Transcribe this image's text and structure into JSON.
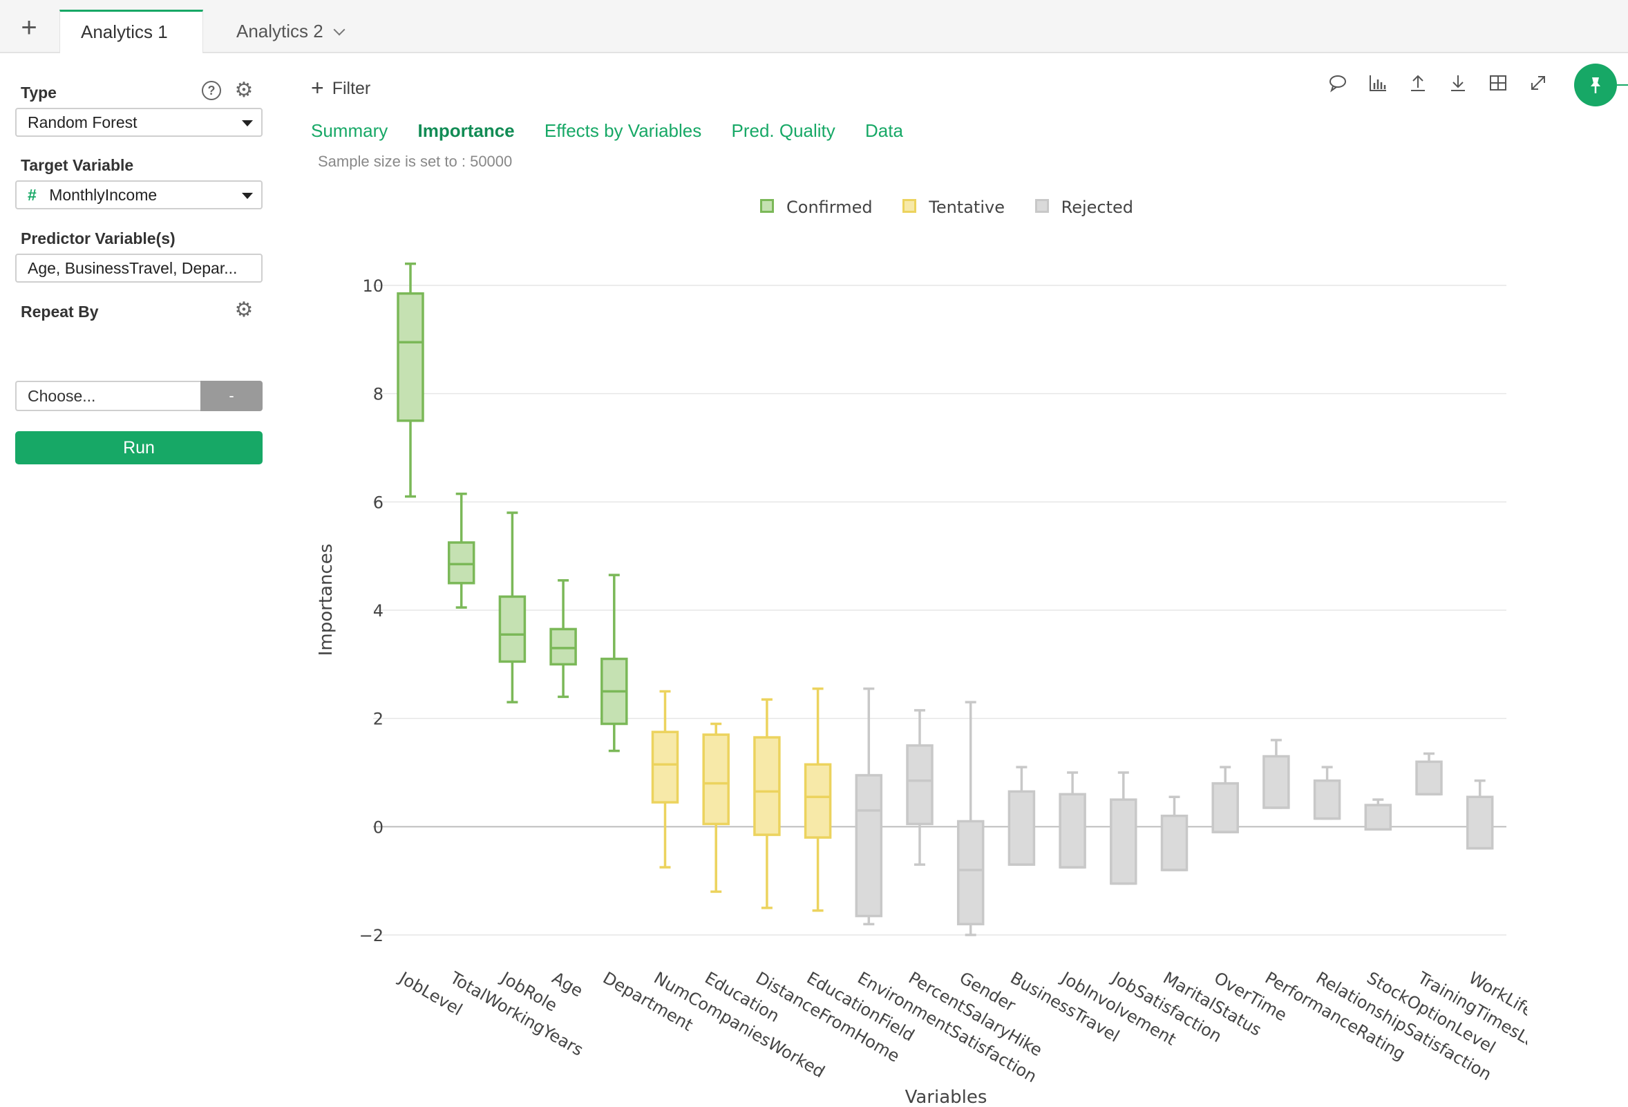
{
  "tabs": {
    "add_label": "+",
    "items": [
      {
        "label": "Analytics 1",
        "active": true
      },
      {
        "label": "Analytics 2",
        "active": false
      }
    ]
  },
  "left_panel": {
    "type_label": "Type",
    "type_value": "Random Forest",
    "target_label": "Target Variable",
    "target_icon": "#",
    "target_value": "MonthlyIncome",
    "predictor_label": "Predictor Variable(s)",
    "predictor_value": "Age, BusinessTravel, Depar...",
    "repeat_label": "Repeat By",
    "repeat_placeholder": "Choose...",
    "repeat_button": "-",
    "run_label": "Run",
    "help_glyph": "?"
  },
  "main": {
    "filter_label": "Filter",
    "subtabs": [
      "Summary",
      "Importance",
      "Effects by Variables",
      "Pred. Quality",
      "Data"
    ],
    "active_subtab": "Importance",
    "sample_text": "Sample size is set to : 50000"
  },
  "colors": {
    "accent": "#17a866",
    "confirmed_stroke": "#7bb858",
    "confirmed_fill": "#c5e1b2",
    "tentative_stroke": "#ecd35e",
    "tentative_fill": "#f7e9a8",
    "rejected_stroke": "#c8c8c8",
    "rejected_fill": "#dadada"
  },
  "chart_data": {
    "type": "box",
    "xlabel": "Variables",
    "ylabel": "Importances",
    "ylim": [
      -2.0,
      10.0
    ],
    "yticks": [
      -2,
      0,
      2,
      4,
      6,
      8,
      10
    ],
    "ytick_labels": [
      "−2",
      "0",
      "2",
      "4",
      "6",
      "8",
      "10"
    ],
    "grid": true,
    "legend": {
      "placement": "top-center",
      "entries": [
        "Confirmed",
        "Tentative",
        "Rejected"
      ]
    },
    "boxes": [
      {
        "name": "JobLevel",
        "group": "Confirmed",
        "min": 6.1,
        "q1": 7.5,
        "median": 8.95,
        "q3": 9.85,
        "max": 10.4
      },
      {
        "name": "TotalWorkingYears",
        "group": "Confirmed",
        "min": 4.05,
        "q1": 4.5,
        "median": 4.85,
        "q3": 5.25,
        "max": 6.15
      },
      {
        "name": "JobRole",
        "group": "Confirmed",
        "min": 2.3,
        "q1": 3.05,
        "median": 3.55,
        "q3": 4.25,
        "max": 5.8
      },
      {
        "name": "Age",
        "group": "Confirmed",
        "min": 2.4,
        "q1": 3.0,
        "median": 3.3,
        "q3": 3.65,
        "max": 4.55
      },
      {
        "name": "Department",
        "group": "Confirmed",
        "min": 1.4,
        "q1": 1.9,
        "median": 2.5,
        "q3": 3.1,
        "max": 4.65
      },
      {
        "name": "NumCompaniesWorked",
        "group": "Tentative",
        "min": -0.75,
        "q1": 0.45,
        "median": 1.15,
        "q3": 1.75,
        "max": 2.5
      },
      {
        "name": "Education",
        "group": "Tentative",
        "min": -1.2,
        "q1": 0.05,
        "median": 0.8,
        "q3": 1.7,
        "max": 1.9
      },
      {
        "name": "DistanceFromHome",
        "group": "Tentative",
        "min": -1.5,
        "q1": -0.15,
        "median": 0.65,
        "q3": 1.65,
        "max": 2.35
      },
      {
        "name": "EducationField",
        "group": "Tentative",
        "min": -1.55,
        "q1": -0.2,
        "median": 0.55,
        "q3": 1.15,
        "max": 2.55
      },
      {
        "name": "EnvironmentSatisfaction",
        "group": "Rejected",
        "min": -1.8,
        "q1": -1.65,
        "median": 0.3,
        "q3": 0.95,
        "max": 2.55
      },
      {
        "name": "PercentSalaryHike",
        "group": "Rejected",
        "min": -0.7,
        "q1": 0.05,
        "median": 0.85,
        "q3": 1.5,
        "max": 2.15
      },
      {
        "name": "Gender",
        "group": "Rejected",
        "min": -2.0,
        "q1": -1.8,
        "median": -0.8,
        "q3": 0.1,
        "max": 2.3
      },
      {
        "name": "BusinessTravel",
        "group": "Rejected",
        "min": -0.7,
        "q1": -0.7,
        "median": -0.7,
        "q3": 0.65,
        "max": 1.1
      },
      {
        "name": "JobInvolvement",
        "group": "Rejected",
        "min": -0.75,
        "q1": -0.75,
        "median": -0.75,
        "q3": 0.6,
        "max": 1.0
      },
      {
        "name": "JobSatisfaction",
        "group": "Rejected",
        "min": -1.05,
        "q1": -1.05,
        "median": -1.05,
        "q3": 0.5,
        "max": 1.0
      },
      {
        "name": "MaritalStatus",
        "group": "Rejected",
        "min": -0.8,
        "q1": -0.8,
        "median": -0.8,
        "q3": 0.2,
        "max": 0.55
      },
      {
        "name": "OverTime",
        "group": "Rejected",
        "min": -0.1,
        "q1": -0.1,
        "median": -0.1,
        "q3": 0.8,
        "max": 1.1
      },
      {
        "name": "PerformanceRating",
        "group": "Rejected",
        "min": 0.35,
        "q1": 0.35,
        "median": 0.35,
        "q3": 1.3,
        "max": 1.6
      },
      {
        "name": "RelationshipSatisfaction",
        "group": "Rejected",
        "min": 0.15,
        "q1": 0.15,
        "median": 0.15,
        "q3": 0.85,
        "max": 1.1
      },
      {
        "name": "StockOptionLevel",
        "group": "Rejected",
        "min": -0.05,
        "q1": -0.05,
        "median": -0.05,
        "q3": 0.4,
        "max": 0.5
      },
      {
        "name": "TrainingTimesLastYear",
        "group": "Rejected",
        "min": 0.6,
        "q1": 0.6,
        "median": 0.6,
        "q3": 1.2,
        "max": 1.35
      },
      {
        "name": "WorkLifeBalance",
        "group": "Rejected",
        "min": -0.4,
        "q1": -0.4,
        "median": -0.4,
        "q3": 0.55,
        "max": 0.85
      }
    ]
  }
}
